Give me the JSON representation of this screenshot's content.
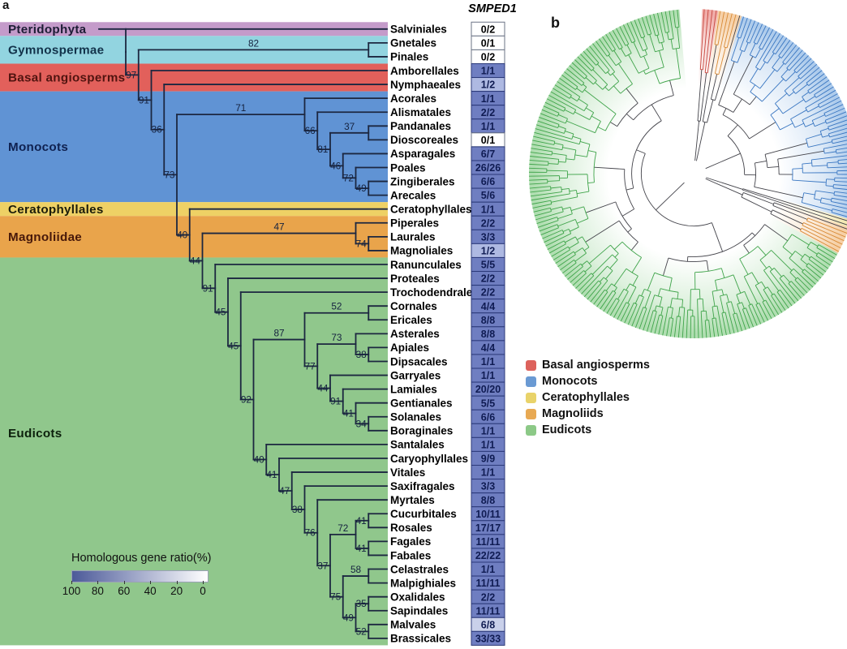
{
  "figure": {
    "panel_a_label": "a",
    "panel_b_label": "b"
  },
  "gene_header": "SMPED1",
  "clades": [
    {
      "name": "Pteridophyta",
      "color": "#c49bca",
      "text_color": "#1d1d35",
      "rows": [
        0,
        0
      ]
    },
    {
      "name": "Gymnospermae",
      "color": "#92d4e0",
      "text_color": "#12324a",
      "rows": [
        1,
        2
      ]
    },
    {
      "name": "Basal angiosperms",
      "color": "#e2605b",
      "text_color": "#511410",
      "rows": [
        3,
        4
      ]
    },
    {
      "name": "Monocots",
      "color": "#6093d4",
      "text_color": "#0f2150",
      "rows": [
        5,
        12
      ]
    },
    {
      "name": "Ceratophyllales",
      "color": "#eed165",
      "text_color": "#1c1c0a",
      "rows": [
        13,
        13
      ]
    },
    {
      "name": "Magnoliidae",
      "color": "#e9a44b",
      "text_color": "#47180a",
      "rows": [
        14,
        16
      ]
    },
    {
      "name": "Eudicots",
      "color": "#90c78c",
      "text_color": "#0c200c",
      "rows": [
        17,
        44
      ]
    }
  ],
  "taxa": [
    {
      "name": "Salviniales",
      "value": "0/2"
    },
    {
      "name": "Gnetales",
      "value": "0/1"
    },
    {
      "name": "Pinales",
      "value": "0/2"
    },
    {
      "name": "Amborellales",
      "value": "1/1"
    },
    {
      "name": "Nymphaeales",
      "value": "1/2"
    },
    {
      "name": "Acorales",
      "value": "1/1"
    },
    {
      "name": "Alismatales",
      "value": "2/2"
    },
    {
      "name": "Pandanales",
      "value": "1/1"
    },
    {
      "name": "Dioscoreales",
      "value": "0/1"
    },
    {
      "name": "Asparagales",
      "value": "6/7"
    },
    {
      "name": "Poales",
      "value": "26/26"
    },
    {
      "name": "Zingiberales",
      "value": "6/6"
    },
    {
      "name": "Arecales",
      "value": "5/6"
    },
    {
      "name": "Ceratophyllales",
      "value": "1/1"
    },
    {
      "name": "Piperales",
      "value": "2/2"
    },
    {
      "name": "Laurales",
      "value": "3/3"
    },
    {
      "name": "Magnoliales",
      "value": "1/2"
    },
    {
      "name": "Ranunculales",
      "value": "5/5"
    },
    {
      "name": "Proteales",
      "value": "2/2"
    },
    {
      "name": "Trochodendrales",
      "value": "2/2"
    },
    {
      "name": "Cornales",
      "value": "4/4"
    },
    {
      "name": "Ericales",
      "value": "8/8"
    },
    {
      "name": "Asterales",
      "value": "8/8"
    },
    {
      "name": "Apiales",
      "value": "4/4"
    },
    {
      "name": "Dipsacales",
      "value": "1/1"
    },
    {
      "name": "Garryales",
      "value": "1/1"
    },
    {
      "name": "Lamiales",
      "value": "20/20"
    },
    {
      "name": "Gentianales",
      "value": "5/5"
    },
    {
      "name": "Solanales",
      "value": "6/6"
    },
    {
      "name": "Boraginales",
      "value": "1/1"
    },
    {
      "name": "Santalales",
      "value": "1/1"
    },
    {
      "name": "Caryophyllales",
      "value": "9/9"
    },
    {
      "name": "Vitales",
      "value": "1/1"
    },
    {
      "name": "Saxifragales",
      "value": "3/3"
    },
    {
      "name": "Myrtales",
      "value": "8/8"
    },
    {
      "name": "Cucurbitales",
      "value": "10/11"
    },
    {
      "name": "Rosales",
      "value": "17/17"
    },
    {
      "name": "Fagales",
      "value": "11/11"
    },
    {
      "name": "Fabales",
      "value": "22/22"
    },
    {
      "name": "Celastrales",
      "value": "1/1"
    },
    {
      "name": "Malpighiales",
      "value": "11/11"
    },
    {
      "name": "Oxalidales",
      "value": "2/2"
    },
    {
      "name": "Sapindales",
      "value": "11/11"
    },
    {
      "name": "Malvales",
      "value": "6/8"
    },
    {
      "name": "Brassicales",
      "value": "33/33"
    }
  ],
  "tree": {
    "b": null,
    "children": [
      "Salviniales",
      {
        "b": "97",
        "children": [
          {
            "b": "82",
            "children": [
              "Gnetales",
              "Pinales"
            ]
          },
          {
            "b": "91",
            "children": [
              "Amborellales",
              {
                "b": "36",
                "children": [
                  "Nymphaeales",
                  {
                    "b": "73",
                    "children": [
                      {
                        "b": "71",
                        "children": [
                          "Acorales",
                          {
                            "b": "66",
                            "children": [
                              "Alismatales",
                              {
                                "b": "81",
                                "children": [
                                  {
                                    "b": "37",
                                    "children": [
                                      "Pandanales",
                                      "Dioscoreales"
                                    ]
                                  },
                                  {
                                    "b": "46",
                                    "children": [
                                      "Asparagales",
                                      {
                                        "b": "72",
                                        "children": [
                                          "Poales",
                                          {
                                            "b": "49",
                                            "children": [
                                              "Zingiberales",
                                              "Arecales"
                                            ]
                                          }
                                        ]
                                      }
                                    ]
                                  }
                                ]
                              }
                            ]
                          }
                        ]
                      },
                      {
                        "b": "40",
                        "children": [
                          "Ceratophyllales",
                          {
                            "b": "44",
                            "children": [
                              {
                                "b": "47",
                                "children": [
                                  "Piperales",
                                  {
                                    "b": "74",
                                    "children": [
                                      "Laurales",
                                      "Magnoliales"
                                    ]
                                  }
                                ]
                              },
                              {
                                "b": "91",
                                "children": [
                                  "Ranunculales",
                                  {
                                    "b": "45",
                                    "children": [
                                      "Proteales",
                                      {
                                        "b": "45",
                                        "children": [
                                          "Trochodendrales",
                                          {
                                            "b": "92",
                                            "children": [
                                              {
                                                "b": "87",
                                                "children": [
                                                  {
                                                    "b": "52",
                                                    "children": [
                                                      "Cornales",
                                                      "Ericales"
                                                    ]
                                                  },
                                                  {
                                                    "b": "77",
                                                    "children": [
                                                      {
                                                        "b": "73",
                                                        "children": [
                                                          "Asterales",
                                                          {
                                                            "b": "38",
                                                            "children": [
                                                              "Apiales",
                                                              "Dipsacales"
                                                            ]
                                                          }
                                                        ]
                                                      },
                                                      {
                                                        "b": "44",
                                                        "children": [
                                                          "Garryales",
                                                          {
                                                            "b": "91",
                                                            "children": [
                                                              "Lamiales",
                                                              {
                                                                "b": "41",
                                                                "children": [
                                                                  "Gentianales",
                                                                  {
                                                                    "b": "34",
                                                                    "children": [
                                                                      "Solanales",
                                                                      "Boraginales"
                                                                    ]
                                                                  }
                                                                ]
                                                              }
                                                            ]
                                                          }
                                                        ]
                                                      }
                                                    ]
                                                  }
                                                ]
                                              },
                                              {
                                                "b": "40",
                                                "children": [
                                                  "Santalales",
                                                  {
                                                    "b": "41",
                                                    "children": [
                                                      "Caryophyllales",
                                                      {
                                                        "b": "47",
                                                        "children": [
                                                          "Vitales",
                                                          {
                                                            "b": "38",
                                                            "children": [
                                                              "Saxifragales",
                                                              {
                                                                "b": "76",
                                                                "children": [
                                                                  "Myrtales",
                                                                  {
                                                                    "b": "37",
                                                                    "children": [
                                                                      {
                                                                        "b": "72",
                                                                        "children": [
                                                                          {
                                                                            "b": "41",
                                                                            "children": [
                                                                              "Cucurbitales",
                                                                              "Rosales"
                                                                            ]
                                                                          },
                                                                          {
                                                                            "b": "41",
                                                                            "children": [
                                                                              "Fagales",
                                                                              "Fabales"
                                                                            ]
                                                                          }
                                                                        ]
                                                                      },
                                                                      {
                                                                        "b": "75",
                                                                        "children": [
                                                                          {
                                                                            "b": "58",
                                                                            "children": [
                                                                              "Celastrales",
                                                                              "Malpighiales"
                                                                            ]
                                                                          },
                                                                          {
                                                                            "b": "49",
                                                                            "children": [
                                                                              {
                                                                                "b": "35",
                                                                                "children": [
                                                                                  "Oxalidales",
                                                                                  "Sapindales"
                                                                                ]
                                                                              },
                                                                              {
                                                                                "b": "52",
                                                                                "children": [
                                                                                  "Malvales",
                                                                                  "Brassicales"
                                                                                ]
                                                                              }
                                                                            ]
                                                                          }
                                                                        ]
                                                                      }
                                                                    ]
                                                                  }
                                                                ]
                                                              }
                                                            ]
                                                          }
                                                        ]
                                                      }
                                                    ]
                                                  }
                                                ]
                                              }
                                            ]
                                          }
                                        ]
                                      }
                                    ]
                                  }
                                ]
                              }
                            ]
                          }
                        ]
                      }
                    ]
                  }
                ]
              }
            ]
          }
        ]
      }
    ]
  },
  "cell_colors": {
    "zero_bg": "#ffffff",
    "zero_text": "#000000",
    "zero_border": "#6b7385",
    "half_bg": "#aeb9e2",
    "threeq_bg": "#c9d0ea",
    "full_bg": "#6f7ec1",
    "text": "#0f1b52",
    "border": "#2c3a7a"
  },
  "colorbar": {
    "title": "Homologous gene ratio(%)",
    "ticks": [
      "100",
      "80",
      "60",
      "40",
      "20",
      "0"
    ],
    "max_color": "#4c5a99",
    "min_color": "#ffffff"
  },
  "legend": [
    {
      "label": "Basal angiosperms",
      "color": "#dd625c"
    },
    {
      "label": "Monocots",
      "color": "#6a9ad3"
    },
    {
      "label": "Ceratophyllales",
      "color": "#e9d36a"
    },
    {
      "label": "Magnoliids",
      "color": "#e8a953"
    },
    {
      "label": "Eudicots",
      "color": "#8cc987"
    }
  ],
  "circular_tree": {
    "sectors": [
      {
        "clade": "Basal angiosperms",
        "color": "#e05a52",
        "edge": "#c7453d",
        "leaves": 4
      },
      {
        "clade": "Magnoliids",
        "color": "#eda14f",
        "edge": "#d88a35",
        "leaves": 6
      },
      {
        "clade": "Monocots",
        "color": "#5b97d8",
        "edge": "#3a77c2",
        "leaves": 64
      },
      {
        "clade": "Ceratophyllales",
        "color": "#e8d163",
        "edge": "#cdb53f",
        "leaves": 2
      },
      {
        "clade": "Magnoliids",
        "color": "#eda14f",
        "edge": "#d88a35",
        "leaves": 7
      },
      {
        "clade": "Eudicots",
        "color": "#62bd63",
        "edge": "#3fa44a",
        "leaves": 169
      }
    ]
  }
}
